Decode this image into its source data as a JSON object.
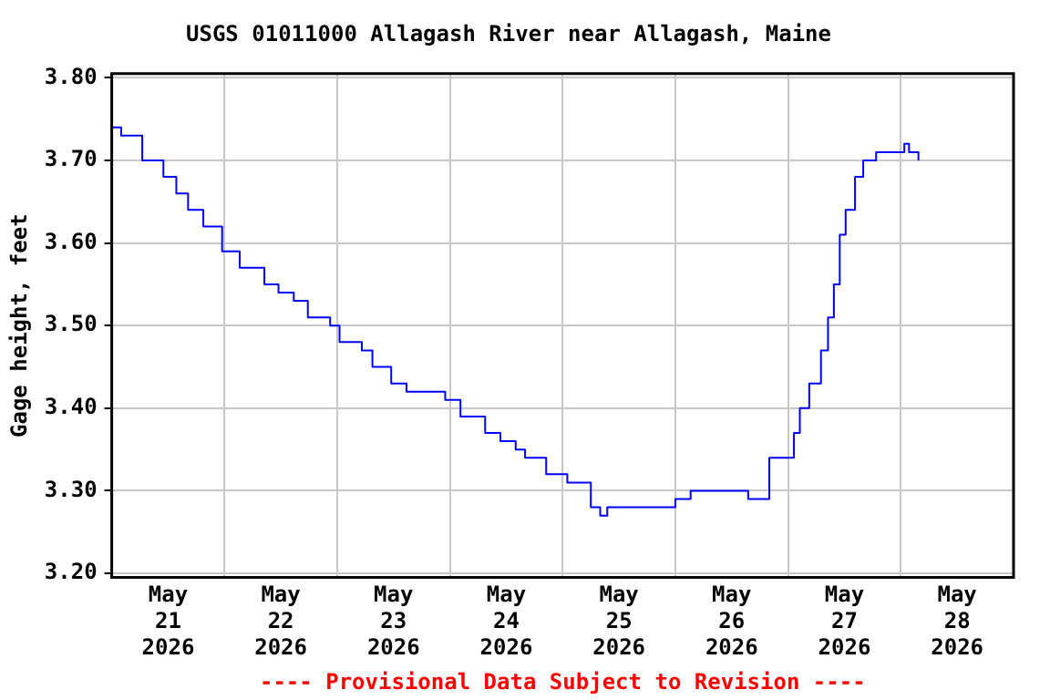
{
  "chart_data": {
    "type": "step",
    "title": "USGS 01011000 Allagash River near Allagash, Maine",
    "ylabel": "Gage height, feet",
    "annotations": [
      "---- Provisional Data Subject to Revision ----"
    ],
    "x": [
      "2026-05-21T00:00",
      "2026-05-21T02:00",
      "2026-05-21T06:30",
      "2026-05-21T09:15",
      "2026-05-21T11:00",
      "2026-05-21T13:45",
      "2026-05-21T16:15",
      "2026-05-21T19:30",
      "2026-05-21T23:30",
      "2026-05-22T03:15",
      "2026-05-22T06:15",
      "2026-05-22T08:30",
      "2026-05-22T11:30",
      "2026-05-22T14:45",
      "2026-05-22T17:45",
      "2026-05-22T22:30",
      "2026-05-23T00:30",
      "2026-05-23T05:15",
      "2026-05-23T07:30",
      "2026-05-23T11:30",
      "2026-05-23T14:45",
      "2026-05-23T23:00",
      "2026-05-24T02:15",
      "2026-05-24T07:30",
      "2026-05-24T10:45",
      "2026-05-24T14:00",
      "2026-05-24T16:00",
      "2026-05-24T20:30",
      "2026-05-25T01:00",
      "2026-05-25T04:00",
      "2026-05-25T06:00",
      "2026-05-25T08:00",
      "2026-05-25T09:30",
      "2026-05-25T23:30",
      "2026-05-26T00:00",
      "2026-05-26T03:15",
      "2026-05-26T15:00",
      "2026-05-26T15:30",
      "2026-05-26T19:00",
      "2026-05-26T20:00",
      "2026-05-26T23:15",
      "2026-05-27T01:15",
      "2026-05-27T02:30",
      "2026-05-27T04:30",
      "2026-05-27T07:00",
      "2026-05-27T08:30",
      "2026-05-27T09:45",
      "2026-05-27T11:00",
      "2026-05-27T12:15",
      "2026-05-27T14:15",
      "2026-05-27T16:00",
      "2026-05-27T18:45",
      "2026-05-28T00:15",
      "2026-05-28T00:45",
      "2026-05-28T01:45",
      "2026-05-28T02:45",
      "2026-05-28T03:45"
    ],
    "series": [
      {
        "color": "#0000ff",
        "values": [
          3.74,
          3.73,
          3.7,
          3.7,
          3.68,
          3.66,
          3.64,
          3.62,
          3.59,
          3.57,
          3.57,
          3.55,
          3.54,
          3.53,
          3.51,
          3.5,
          3.48,
          3.47,
          3.45,
          3.43,
          3.42,
          3.41,
          3.39,
          3.37,
          3.36,
          3.35,
          3.34,
          3.32,
          3.31,
          3.31,
          3.28,
          3.27,
          3.28,
          3.28,
          3.29,
          3.3,
          3.3,
          3.29,
          3.29,
          3.34,
          3.34,
          3.37,
          3.4,
          3.43,
          3.47,
          3.51,
          3.55,
          3.61,
          3.64,
          3.68,
          3.7,
          3.71,
          3.71,
          3.72,
          3.71,
          3.71,
          3.7
        ]
      }
    ],
    "xlim": [
      "2026-05-21T00:00",
      "2026-05-29T00:00"
    ],
    "xticks": [
      {
        "value": "2026-05-21T00:00",
        "label": null
      },
      {
        "value": "2026-05-21T12:00",
        "label": "May\n21\n2026"
      },
      {
        "value": "2026-05-22T00:00",
        "label": null
      },
      {
        "value": "2026-05-22T12:00",
        "label": "May\n22\n2026"
      },
      {
        "value": "2026-05-23T00:00",
        "label": null
      },
      {
        "value": "2026-05-23T12:00",
        "label": "May\n23\n2026"
      },
      {
        "value": "2026-05-24T00:00",
        "label": null
      },
      {
        "value": "2026-05-24T12:00",
        "label": "May\n24\n2026"
      },
      {
        "value": "2026-05-25T00:00",
        "label": null
      },
      {
        "value": "2026-05-25T12:00",
        "label": "May\n25\n2026"
      },
      {
        "value": "2026-05-26T00:00",
        "label": null
      },
      {
        "value": "2026-05-26T12:00",
        "label": "May\n26\n2026"
      },
      {
        "value": "2026-05-27T00:00",
        "label": null
      },
      {
        "value": "2026-05-27T12:00",
        "label": "May\n27\n2026"
      },
      {
        "value": "2026-05-28T00:00",
        "label": null
      },
      {
        "value": "2026-05-28T12:00",
        "label": "May\n28\n2026"
      },
      {
        "value": "2026-05-29T00:00",
        "label": null
      }
    ],
    "ylim": [
      3.195,
      3.805
    ],
    "yticks": [
      {
        "value": 3.2,
        "label": "3.20"
      },
      {
        "value": 3.3,
        "label": "3.30"
      },
      {
        "value": 3.4,
        "label": "3.40"
      },
      {
        "value": 3.5,
        "label": "3.50"
      },
      {
        "value": 3.6,
        "label": "3.60"
      },
      {
        "value": 3.7,
        "label": "3.70"
      },
      {
        "value": 3.8,
        "label": "3.80"
      }
    ],
    "grid": true,
    "legend": false,
    "marker": "none",
    "line_style": "solid"
  }
}
